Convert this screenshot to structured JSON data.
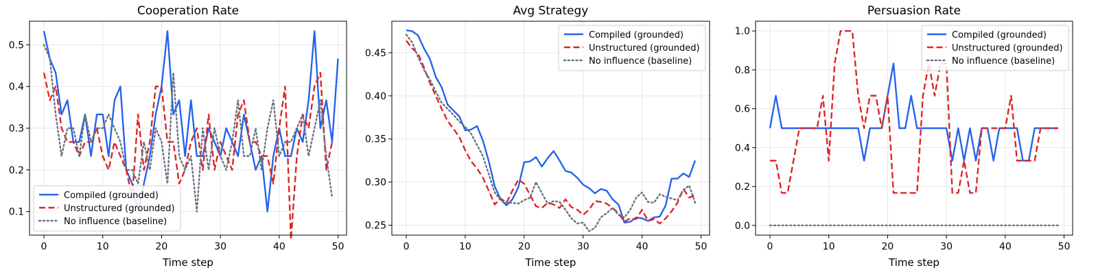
{
  "figure": {
    "background": "#ffffff"
  },
  "series_styles": [
    {
      "color": "#2563eb",
      "dash": "solid"
    },
    {
      "color": "#dc2626",
      "dash": "dashed"
    },
    {
      "color": "#6b7280",
      "dash": "dotted"
    }
  ],
  "chart_data": [
    {
      "type": "line",
      "title": "Cooperation Rate",
      "xlabel": "Time step",
      "ylabel": "",
      "xlim": [
        -2.45,
        51.45
      ],
      "ylim": [
        0.0435,
        0.5565
      ],
      "xticks": [
        0,
        10,
        20,
        30,
        40,
        50
      ],
      "yticks": [
        0.1,
        0.2,
        0.3,
        0.4,
        0.5
      ],
      "ytick_labels": [
        "0.1",
        "0.2",
        "0.3",
        "0.4",
        "0.5"
      ],
      "grid": true,
      "legend_position": "lower-left",
      "series": [
        {
          "name": "Compiled (grounded)",
          "values": [
            0.533,
            0.467,
            0.433,
            0.333,
            0.367,
            0.267,
            0.267,
            0.333,
            0.233,
            0.333,
            0.333,
            0.233,
            0.367,
            0.4,
            0.2,
            0.167,
            0.1,
            0.167,
            0.233,
            0.333,
            0.4,
            0.533,
            0.333,
            0.367,
            0.233,
            0.367,
            0.233,
            0.233,
            0.3,
            0.267,
            0.233,
            0.3,
            0.267,
            0.233,
            0.333,
            0.267,
            0.2,
            0.233,
            0.1,
            0.233,
            0.3,
            0.233,
            0.233,
            0.3,
            0.267,
            0.367,
            0.533,
            0.3,
            0.367,
            0.267,
            0.467
          ]
        },
        {
          "name": "Unstructured (grounded)",
          "values": [
            0.433,
            0.367,
            0.4,
            0.3,
            0.267,
            0.267,
            0.233,
            0.267,
            0.267,
            0.3,
            0.233,
            0.2,
            0.267,
            0.233,
            0.2,
            0.133,
            0.333,
            0.2,
            0.267,
            0.4,
            0.4,
            0.267,
            0.267,
            0.167,
            0.2,
            0.267,
            0.3,
            0.2,
            0.333,
            0.2,
            0.267,
            0.233,
            0.2,
            0.333,
            0.367,
            0.267,
            0.267,
            0.233,
            0.233,
            0.167,
            0.3,
            0.4,
            0.033,
            0.233,
            0.333,
            0.3,
            0.4,
            0.433,
            0.2,
            0.267
          ]
        },
        {
          "name": "No influence (baseline)",
          "values": [
            0.5,
            0.467,
            0.333,
            0.233,
            0.3,
            0.3,
            0.233,
            0.333,
            0.267,
            0.3,
            0.3,
            0.333,
            0.3,
            0.267,
            0.2,
            0.2,
            0.167,
            0.267,
            0.2,
            0.3,
            0.267,
            0.167,
            0.433,
            0.233,
            0.2,
            0.233,
            0.1,
            0.3,
            0.2,
            0.3,
            0.233,
            0.2,
            0.267,
            0.367,
            0.233,
            0.233,
            0.3,
            0.2,
            0.3,
            0.367,
            0.233,
            0.267,
            0.267,
            0.3,
            0.333,
            0.233,
            0.3,
            0.367,
            0.233,
            0.133
          ]
        }
      ]
    },
    {
      "type": "line",
      "title": "Avg Strategy",
      "xlabel": "Time step",
      "ylabel": "",
      "xlim": [
        -2.45,
        51.45
      ],
      "ylim": [
        0.2385,
        0.4865
      ],
      "xticks": [
        0,
        10,
        20,
        30,
        40,
        50
      ],
      "yticks": [
        0.25,
        0.3,
        0.35,
        0.4,
        0.45
      ],
      "ytick_labels": [
        "0.25",
        "0.30",
        "0.35",
        "0.40",
        "0.45"
      ],
      "grid": true,
      "legend_position": "top-right",
      "series": [
        {
          "name": "Compiled (grounded)",
          "values": [
            0.476,
            0.475,
            0.47,
            0.455,
            0.443,
            0.422,
            0.41,
            0.39,
            0.383,
            0.376,
            0.36,
            0.361,
            0.365,
            0.348,
            0.324,
            0.295,
            0.28,
            0.273,
            0.28,
            0.294,
            0.323,
            0.324,
            0.329,
            0.318,
            0.328,
            0.336,
            0.325,
            0.313,
            0.311,
            0.305,
            0.297,
            0.293,
            0.287,
            0.292,
            0.29,
            0.28,
            0.274,
            0.253,
            0.254,
            0.259,
            0.258,
            0.255,
            0.259,
            0.26,
            0.273,
            0.304,
            0.304,
            0.31,
            0.306,
            0.325
          ]
        },
        {
          "name": "Unstructured (grounded)",
          "values": [
            0.464,
            0.455,
            0.449,
            0.433,
            0.415,
            0.4,
            0.385,
            0.371,
            0.362,
            0.352,
            0.337,
            0.324,
            0.316,
            0.305,
            0.29,
            0.274,
            0.281,
            0.276,
            0.29,
            0.303,
            0.298,
            0.285,
            0.272,
            0.27,
            0.276,
            0.274,
            0.27,
            0.28,
            0.271,
            0.268,
            0.262,
            0.268,
            0.278,
            0.277,
            0.275,
            0.27,
            0.264,
            0.254,
            0.258,
            0.257,
            0.268,
            0.255,
            0.257,
            0.252,
            0.258,
            0.266,
            0.276,
            0.292,
            0.282,
            0.285
          ]
        },
        {
          "name": "No influence (baseline)",
          "values": [
            0.471,
            0.462,
            0.445,
            0.43,
            0.419,
            0.405,
            0.392,
            0.385,
            0.378,
            0.37,
            0.364,
            0.356,
            0.343,
            0.33,
            0.309,
            0.288,
            0.279,
            0.276,
            0.276,
            0.275,
            0.279,
            0.282,
            0.3,
            0.287,
            0.275,
            0.278,
            0.277,
            0.268,
            0.258,
            0.252,
            0.253,
            0.243,
            0.247,
            0.259,
            0.264,
            0.27,
            0.262,
            0.259,
            0.268,
            0.282,
            0.288,
            0.277,
            0.276,
            0.286,
            0.283,
            0.281,
            0.279,
            0.291,
            0.296,
            0.276
          ]
        }
      ]
    },
    {
      "type": "line",
      "title": "Persuasion Rate",
      "xlabel": "Time step",
      "ylabel": "",
      "xlim": [
        -2.45,
        51.45
      ],
      "ylim": [
        -0.05,
        1.05
      ],
      "xticks": [
        0,
        10,
        20,
        30,
        40,
        50
      ],
      "yticks": [
        0.0,
        0.2,
        0.4,
        0.6,
        0.8,
        1.0
      ],
      "ytick_labels": [
        "0.0",
        "0.2",
        "0.4",
        "0.6",
        "0.8",
        "1.0"
      ],
      "grid": true,
      "legend_position": "top-right",
      "series": [
        {
          "name": "Compiled (grounded)",
          "values": [
            0.5,
            0.667,
            0.5,
            0.5,
            0.5,
            0.5,
            0.5,
            0.5,
            0.5,
            0.5,
            0.5,
            0.5,
            0.5,
            0.5,
            0.5,
            0.5,
            0.333,
            0.5,
            0.5,
            0.5,
            0.667,
            0.833,
            0.5,
            0.5,
            0.667,
            0.5,
            0.5,
            0.5,
            0.5,
            0.5,
            0.5,
            0.333,
            0.5,
            0.333,
            0.5,
            0.333,
            0.5,
            0.5,
            0.333,
            0.5,
            0.5,
            0.5,
            0.5,
            0.333,
            0.333,
            0.5,
            0.5,
            0.5,
            0.5,
            0.5
          ]
        },
        {
          "name": "Unstructured (grounded)",
          "values": [
            0.333,
            0.333,
            0.167,
            0.167,
            0.333,
            0.5,
            0.5,
            0.5,
            0.5,
            0.667,
            0.333,
            0.833,
            1.0,
            1.0,
            1.0,
            0.667,
            0.5,
            0.667,
            0.667,
            0.5,
            0.667,
            0.167,
            0.167,
            0.167,
            0.167,
            0.167,
            0.667,
            0.833,
            0.667,
            0.833,
            0.833,
            0.167,
            0.167,
            0.333,
            0.167,
            0.167,
            0.5,
            0.5,
            0.5,
            0.5,
            0.5,
            0.667,
            0.333,
            0.333,
            0.333,
            0.333,
            0.5,
            0.5,
            0.5,
            0.5
          ]
        },
        {
          "name": "No influence (baseline)",
          "values": [
            0,
            0,
            0,
            0,
            0,
            0,
            0,
            0,
            0,
            0,
            0,
            0,
            0,
            0,
            0,
            0,
            0,
            0,
            0,
            0,
            0,
            0,
            0,
            0,
            0,
            0,
            0,
            0,
            0,
            0,
            0,
            0,
            0,
            0,
            0,
            0,
            0,
            0,
            0,
            0,
            0,
            0,
            0,
            0,
            0,
            0,
            0,
            0,
            0,
            0
          ]
        }
      ]
    }
  ]
}
